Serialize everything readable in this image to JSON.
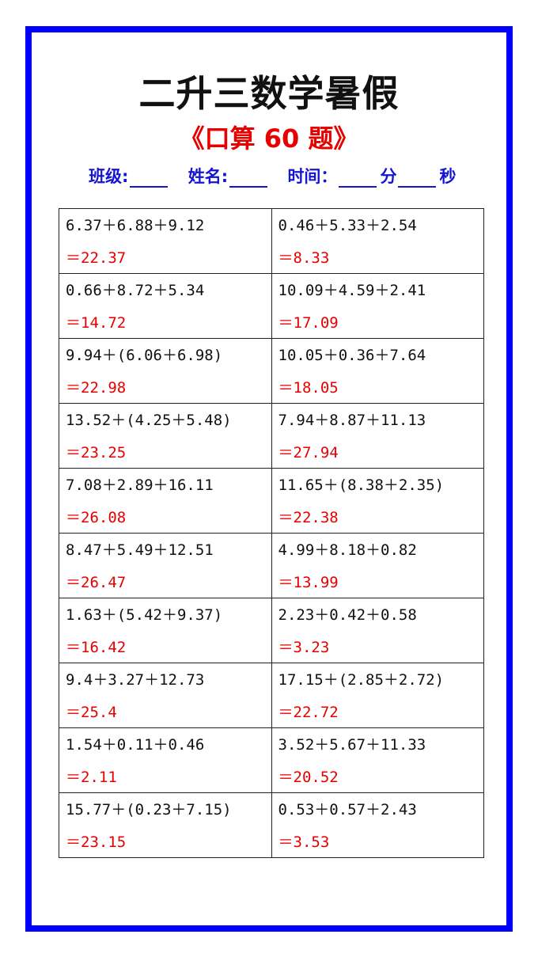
{
  "title": "二升三数学暑假",
  "subtitle": "《口算 60 题》",
  "info": {
    "class_label": "班级:",
    "name_label": "姓名:",
    "time_label": "时间：",
    "minutes_label": "分",
    "seconds_label": "秒"
  },
  "colors": {
    "border": "#0000ff",
    "answer": "#e60000",
    "info": "#1515d0"
  },
  "rows": [
    [
      {
        "q": "6.37＋6.88＋9.12",
        "a": "＝22.37"
      },
      {
        "q": "0.46＋5.33＋2.54",
        "a": "＝8.33"
      }
    ],
    [
      {
        "q": "0.66＋8.72＋5.34",
        "a": "＝14.72"
      },
      {
        "q": "10.09＋4.59＋2.41",
        "a": "＝17.09"
      }
    ],
    [
      {
        "q": "9.94＋(6.06＋6.98)",
        "a": "＝22.98"
      },
      {
        "q": "10.05＋0.36＋7.64",
        "a": "＝18.05"
      }
    ],
    [
      {
        "q": "13.52＋(4.25＋5.48)",
        "a": "＝23.25"
      },
      {
        "q": "7.94＋8.87＋11.13",
        "a": "＝27.94"
      }
    ],
    [
      {
        "q": "7.08＋2.89＋16.11",
        "a": "＝26.08"
      },
      {
        "q": "11.65＋(8.38＋2.35)",
        "a": "＝22.38"
      }
    ],
    [
      {
        "q": "8.47＋5.49＋12.51",
        "a": "＝26.47"
      },
      {
        "q": "4.99＋8.18＋0.82",
        "a": "＝13.99"
      }
    ],
    [
      {
        "q": "1.63＋(5.42＋9.37)",
        "a": "＝16.42"
      },
      {
        "q": "2.23＋0.42＋0.58",
        "a": "＝3.23"
      }
    ],
    [
      {
        "q": "9.4＋3.27＋12.73",
        "a": "＝25.4"
      },
      {
        "q": "17.15＋(2.85＋2.72)",
        "a": "＝22.72"
      }
    ],
    [
      {
        "q": "1.54＋0.11＋0.46",
        "a": "＝2.11"
      },
      {
        "q": "3.52＋5.67＋11.33",
        "a": "＝20.52"
      }
    ],
    [
      {
        "q": "15.77＋(0.23＋7.15)",
        "a": "＝23.15"
      },
      {
        "q": "0.53＋0.57＋2.43",
        "a": "＝3.53"
      }
    ]
  ]
}
